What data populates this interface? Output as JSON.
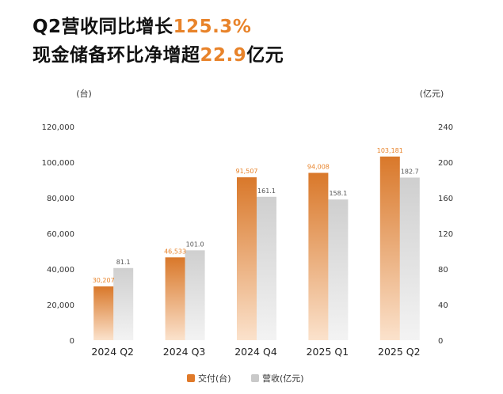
{
  "headline": {
    "line1_prefix": "Q2营收同比增长",
    "line1_highlight": "125.3",
    "line1_suffix": "%",
    "line2_prefix": "现金储备环比净增超",
    "line2_highlight": "22.9",
    "line2_suffix": "亿元"
  },
  "colors": {
    "accent": "#e8832a",
    "delivery_bar_top": "#d9782a",
    "delivery_bar_bottom": "#fbe2cc",
    "revenue_bar_top": "#cfcfcf",
    "revenue_bar_bottom": "#f3f3f3",
    "axis_text": "#333333",
    "revenue_label": "#555555"
  },
  "chart_data": {
    "type": "bar",
    "categories": [
      "2024 Q2",
      "2024 Q3",
      "2024 Q4",
      "2025 Q1",
      "2025 Q2"
    ],
    "series": [
      {
        "name": "交付(台)",
        "axis": "left",
        "values": [
          30207,
          46533,
          91507,
          94008,
          103181
        ],
        "labels": [
          "30,207",
          "46,533",
          "91,507",
          "94,008",
          "103,181"
        ]
      },
      {
        "name": "营收(亿元)",
        "axis": "right",
        "values": [
          81.1,
          101.0,
          161.1,
          158.1,
          182.7
        ],
        "labels": [
          "81.1",
          "101.0",
          "161.1",
          "158.1",
          "182.7"
        ]
      }
    ],
    "left_axis": {
      "unit": "(台)",
      "ylim": [
        0,
        120000
      ],
      "ticks": [
        0,
        20000,
        40000,
        60000,
        80000,
        100000,
        120000
      ],
      "tick_labels": [
        "0",
        "20,000",
        "40,000",
        "60,000",
        "80,000",
        "100,000",
        "120,000"
      ]
    },
    "right_axis": {
      "unit": "(亿元)",
      "ylim": [
        0,
        240
      ],
      "ticks": [
        0,
        40,
        80,
        120,
        160,
        200,
        240
      ],
      "tick_labels": [
        "0",
        "40",
        "80",
        "120",
        "160",
        "200",
        "240"
      ]
    },
    "grid": false,
    "legend_position": "bottom-center"
  }
}
